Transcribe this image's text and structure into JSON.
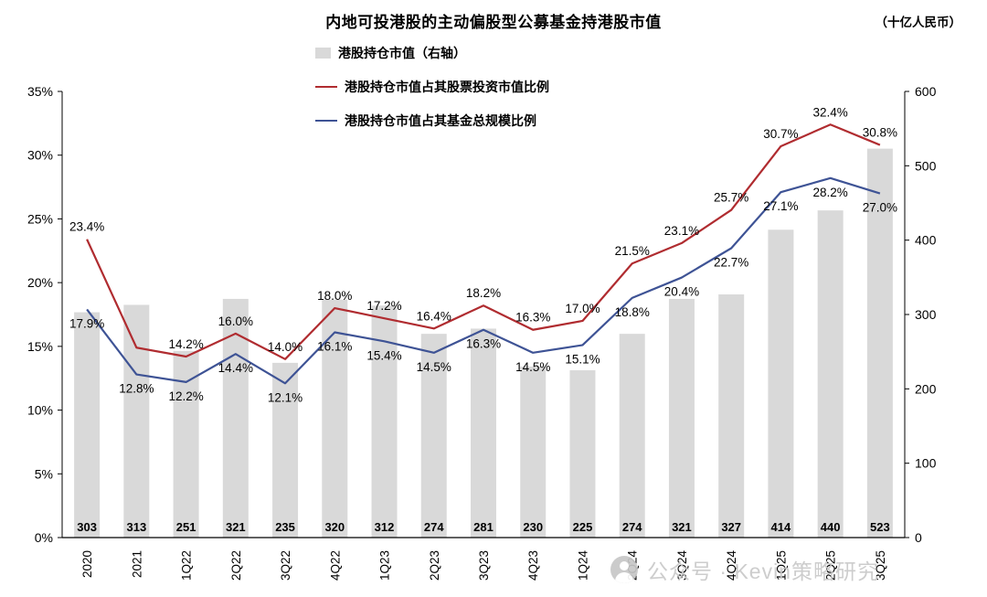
{
  "header": {
    "title": "内地可投港股的主动偏股型公募基金持港股市值",
    "unit": "（十亿人民币）"
  },
  "watermark": {
    "icon": "wechat-official-account-avatar-icon",
    "text": "公众号 · Kevin策略研究"
  },
  "chart_data": {
    "type": "bar",
    "subtype": "bar-line-combo",
    "title": "内地可投港股的主动偏股型公募基金持港股市值",
    "right_axis_unit": "十亿人民币",
    "grid": false,
    "legend_position": "top-center-stacked",
    "categories": [
      "2020",
      "2021",
      "1Q22",
      "2Q22",
      "3Q22",
      "4Q22",
      "1Q23",
      "2Q23",
      "3Q23",
      "4Q23",
      "1Q24",
      "2Q24",
      "3Q24",
      "4Q24",
      "1Q25",
      "2Q25",
      "3Q25"
    ],
    "bar_series": {
      "name": "港股持仓市值（右轴）",
      "axis": "right",
      "color": "#d9d9d9",
      "values": [
        303,
        313,
        251,
        321,
        235,
        320,
        312,
        274,
        281,
        230,
        225,
        274,
        321,
        327,
        414,
        440,
        523
      ]
    },
    "line_series": [
      {
        "name": "港股持仓市值占其股票投资市值比例",
        "axis": "left",
        "color": "#b02c30",
        "label_position": "above",
        "values": [
          23.4,
          14.9,
          14.2,
          16.0,
          14.0,
          18.0,
          17.2,
          16.4,
          18.2,
          16.3,
          17.0,
          21.5,
          23.1,
          25.7,
          30.7,
          32.4,
          30.8
        ],
        "labels": [
          "23.4%",
          "",
          "14.2%",
          "16.0%",
          "14.0%",
          "18.0%",
          "17.2%",
          "16.4%",
          "18.2%",
          "16.3%",
          "17.0%",
          "21.5%",
          "23.1%",
          "25.7%",
          "30.7%",
          "32.4%",
          "30.8%"
        ]
      },
      {
        "name": "港股持仓市值占其基金总规模比例",
        "axis": "left",
        "color": "#3e5395",
        "label_position": "below",
        "values": [
          17.9,
          12.8,
          12.2,
          14.4,
          12.1,
          16.1,
          15.4,
          14.5,
          16.3,
          14.5,
          15.1,
          18.8,
          20.4,
          22.7,
          27.1,
          28.2,
          27.0
        ],
        "labels": [
          "17.9%",
          "12.8%",
          "12.2%",
          "14.4%",
          "12.1%",
          "16.1%",
          "15.4%",
          "14.5%",
          "16.3%",
          "14.5%",
          "15.1%",
          "18.8%",
          "20.4%",
          "22.7%",
          "27.1%",
          "28.2%",
          "27.0%"
        ]
      }
    ],
    "left_axis": {
      "min": 0,
      "max": 35,
      "step": 5,
      "ticks": [
        "0%",
        "5%",
        "10%",
        "15%",
        "20%",
        "25%",
        "30%",
        "35%"
      ]
    },
    "right_axis": {
      "min": 0,
      "max": 600,
      "step": 100,
      "ticks": [
        "0",
        "100",
        "200",
        "300",
        "400",
        "500",
        "600"
      ]
    }
  }
}
